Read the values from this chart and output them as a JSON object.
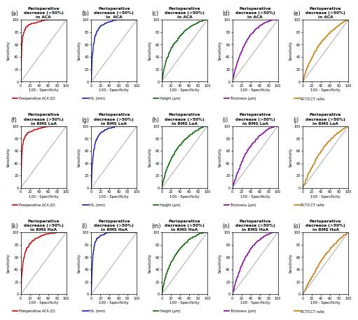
{
  "rows": 3,
  "cols": 5,
  "panel_labels": [
    [
      "(a)",
      "(b)",
      "(c)",
      "(d)",
      "(e)"
    ],
    [
      "(f)",
      "(g)",
      "(h)",
      "(i)",
      "(j)"
    ],
    [
      "(k)",
      "(l)",
      "(m)",
      "(n)",
      "(o)"
    ]
  ],
  "titles": [
    [
      "Perioperative\ndecrease (>50%)\nin ACA",
      "Perioperative\ndecrease (>50%)\nin  ACA",
      "Perioperative\ndecrease (>50%)\nin ACA",
      "Perioperative\ndecrease (>50%)\nin ACA",
      "Perioperative\ndecrease (>50%)\nin ACA"
    ],
    [
      "Perioperative\ndecrease (>50%)\nin RMS LoA",
      "Perioperative\ndecrease (>50%)\nin RMS LoA",
      "Perioperative\ndecrease (>50%)\nin RMS LoA",
      "Perioperative\ndecrease (>50%)\nin RMS LoA",
      "Perioperative\ndecrease (>50%)\nin RMS LoA"
    ],
    [
      "Perioperative\ndecrease (>50%)\nin RMS HoA",
      "Perioperative\ndecrease (>50%)\nin RMS HoA",
      "Perioperative\ndecrease (>50%)\nin RMS HoA",
      "Perioperative\ndecrease (>50%)\nin RMS HoA",
      "Perioperative\ndecrease (>50%)\nin RMS HoA"
    ]
  ],
  "legend_labels": [
    [
      "Preoperative ACA (D)",
      "HIL (mm)",
      "Height (μm)",
      "Thickness (μm)",
      "RCT/CCT ratio"
    ],
    [
      "Preoperative ACA (D)",
      "HIL (mm)",
      "Height (μm)",
      "Thickness (μm)",
      "RCT/CCT ratio"
    ],
    [
      "Preoperative ACA (D)",
      "HIL (mm)",
      "Height (μm)",
      "Thickness (μm)",
      "RCT/CCT ratio"
    ]
  ],
  "colors": [
    "#cc0000",
    "#1a1aaa",
    "#006600",
    "#8800aa",
    "#cc7700"
  ],
  "background_color": "#ffffff",
  "roc_curves": {
    "row0": {
      "col0": {
        "fpr": [
          0,
          2,
          4,
          6,
          8,
          10,
          12,
          14,
          16,
          18,
          20,
          30,
          40,
          50,
          60,
          70,
          80,
          90,
          100
        ],
        "tpr": [
          0,
          55,
          72,
          78,
          82,
          85,
          87,
          88,
          89,
          90,
          91,
          93,
          95,
          97,
          98,
          99,
          99,
          100,
          100
        ]
      },
      "col1": {
        "fpr": [
          0,
          2,
          5,
          8,
          12,
          16,
          20,
          25,
          30,
          40,
          50,
          60,
          70,
          80,
          90,
          100
        ],
        "tpr": [
          0,
          40,
          60,
          72,
          80,
          85,
          88,
          90,
          92,
          95,
          97,
          98,
          99,
          100,
          100,
          100
        ]
      },
      "col2": {
        "fpr": [
          0,
          5,
          10,
          20,
          30,
          40,
          50,
          60,
          70,
          80,
          90,
          100
        ],
        "tpr": [
          0,
          20,
          35,
          52,
          63,
          72,
          80,
          86,
          90,
          94,
          97,
          100
        ]
      },
      "col3": {
        "fpr": [
          0,
          5,
          10,
          15,
          20,
          25,
          30,
          40,
          50,
          60,
          70,
          80,
          90,
          100
        ],
        "tpr": [
          0,
          15,
          28,
          38,
          48,
          56,
          63,
          74,
          82,
          88,
          93,
          96,
          99,
          100
        ]
      },
      "col4": {
        "fpr": [
          0,
          5,
          10,
          20,
          30,
          40,
          50,
          60,
          70,
          80,
          90,
          100
        ],
        "tpr": [
          0,
          12,
          22,
          38,
          52,
          62,
          70,
          78,
          84,
          90,
          95,
          100
        ]
      }
    },
    "row1": {
      "col0": {
        "fpr": [
          0,
          2,
          4,
          6,
          8,
          10,
          12,
          15,
          20,
          30,
          40,
          50,
          60,
          70,
          80,
          90,
          100
        ],
        "tpr": [
          0,
          50,
          68,
          75,
          80,
          83,
          85,
          87,
          89,
          92,
          94,
          96,
          97,
          98,
          99,
          100,
          100
        ]
      },
      "col1": {
        "fpr": [
          0,
          2,
          5,
          8,
          12,
          16,
          20,
          30,
          40,
          50,
          60,
          70,
          80,
          90,
          100
        ],
        "tpr": [
          0,
          38,
          58,
          70,
          78,
          83,
          87,
          92,
          95,
          97,
          98,
          99,
          100,
          100,
          100
        ]
      },
      "col2": {
        "fpr": [
          0,
          5,
          10,
          20,
          30,
          40,
          50,
          60,
          70,
          80,
          90,
          100
        ],
        "tpr": [
          0,
          15,
          28,
          45,
          58,
          68,
          76,
          83,
          88,
          93,
          97,
          100
        ]
      },
      "col3": {
        "fpr": [
          0,
          5,
          10,
          15,
          20,
          30,
          40,
          50,
          60,
          70,
          80,
          90,
          100
        ],
        "tpr": [
          0,
          10,
          20,
          30,
          40,
          55,
          66,
          75,
          83,
          89,
          94,
          97,
          100
        ]
      },
      "col4": {
        "fpr": [
          0,
          5,
          10,
          20,
          30,
          40,
          50,
          60,
          70,
          80,
          90,
          100
        ],
        "tpr": [
          0,
          8,
          18,
          32,
          46,
          58,
          68,
          76,
          83,
          89,
          94,
          100
        ]
      }
    },
    "row2": {
      "col0": {
        "fpr": [
          0,
          2,
          5,
          10,
          15,
          20,
          25,
          30,
          40,
          50,
          60,
          70,
          80,
          90,
          100
        ],
        "tpr": [
          0,
          30,
          52,
          68,
          75,
          80,
          84,
          87,
          91,
          94,
          96,
          97,
          98,
          99,
          100
        ]
      },
      "col1": {
        "fpr": [
          0,
          2,
          4,
          6,
          8,
          12,
          16,
          20,
          30,
          40,
          50,
          60,
          70,
          80,
          90,
          100
        ],
        "tpr": [
          0,
          45,
          65,
          75,
          82,
          88,
          91,
          93,
          96,
          98,
          99,
          100,
          100,
          100,
          100,
          100
        ]
      },
      "col2": {
        "fpr": [
          0,
          5,
          10,
          20,
          30,
          40,
          50,
          60,
          70,
          80,
          90,
          100
        ],
        "tpr": [
          0,
          18,
          32,
          50,
          62,
          72,
          80,
          87,
          91,
          95,
          98,
          100
        ]
      },
      "col3": {
        "fpr": [
          0,
          5,
          10,
          15,
          20,
          30,
          40,
          50,
          60,
          70,
          80,
          90,
          100
        ],
        "tpr": [
          0,
          12,
          25,
          35,
          45,
          60,
          72,
          80,
          87,
          92,
          96,
          98,
          100
        ]
      },
      "col4": {
        "fpr": [
          0,
          5,
          10,
          20,
          30,
          40,
          50,
          60,
          70,
          80,
          90,
          100
        ],
        "tpr": [
          0,
          6,
          14,
          26,
          40,
          52,
          63,
          72,
          80,
          87,
          93,
          100
        ]
      }
    }
  }
}
